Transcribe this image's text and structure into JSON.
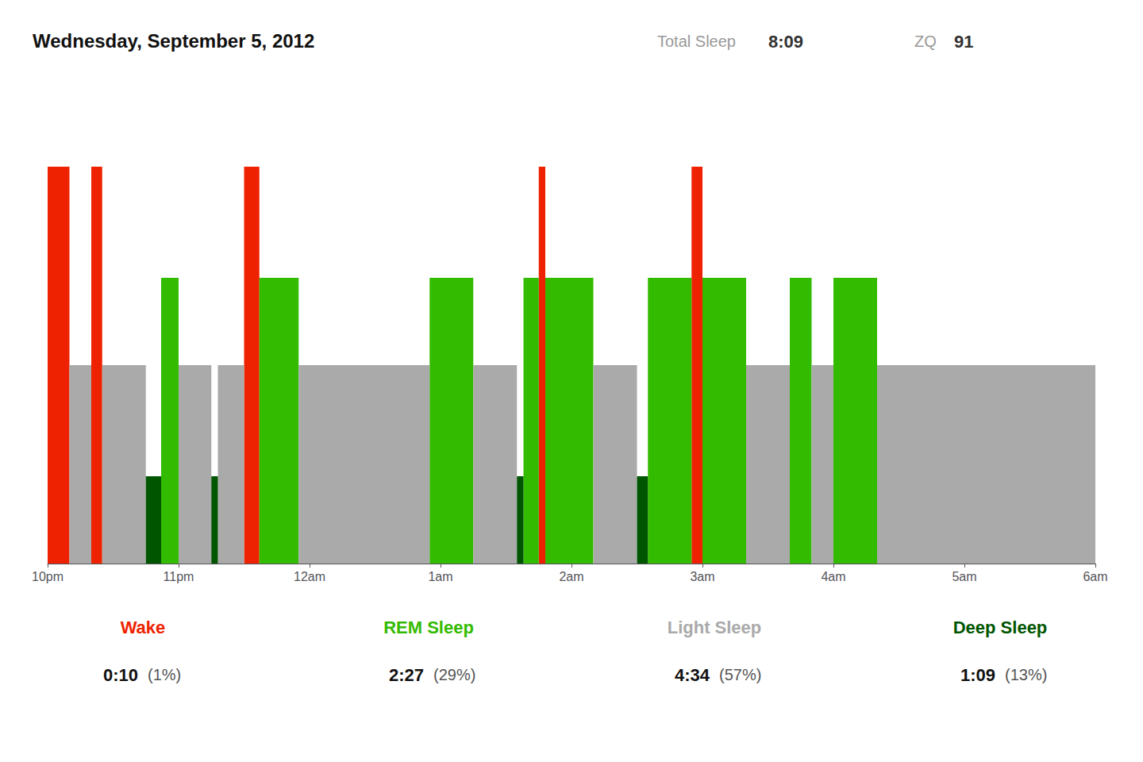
{
  "chart_data": {
    "type": "bar",
    "title": "Wednesday, September 5, 2012",
    "stats": [
      {
        "label": "Total Sleep",
        "value": "8:09"
      },
      {
        "label": "ZQ",
        "value": 91
      }
    ],
    "xlim": [
      0,
      480
    ],
    "xticks": [
      {
        "value": 0,
        "label": "10pm"
      },
      {
        "value": 60,
        "label": "11pm"
      },
      {
        "value": 120,
        "label": "12am"
      },
      {
        "value": 180,
        "label": "1am"
      },
      {
        "value": 240,
        "label": "2am"
      },
      {
        "value": 300,
        "label": "3am"
      },
      {
        "value": 360,
        "label": "4am"
      },
      {
        "value": 420,
        "label": "5am"
      },
      {
        "value": 480,
        "label": "6am"
      }
    ],
    "ylim": [
      0,
      120
    ],
    "tick_labels": "x",
    "grid": false,
    "series": [
      {
        "name": "Wake",
        "color": "#ee2200",
        "value": 100,
        "time": "0:10",
        "share": 1,
        "share_label": "(1%)"
      },
      {
        "name": "REM Sleep",
        "color": "#33bb00",
        "value": 72,
        "time": "2:27",
        "share": 29,
        "share_label": "(29%)"
      },
      {
        "name": "Light Sleep",
        "color": "#aaaaaa",
        "value": 50,
        "time": "4:34",
        "share": 57,
        "share_label": "(57%)"
      },
      {
        "name": "Deep Sleep",
        "color": "#005500",
        "value": 22,
        "time": "1:09",
        "share": 13,
        "share_label": "(13%)"
      }
    ],
    "segments": [
      {
        "start": 0,
        "end": 10,
        "stage": "Wake"
      },
      {
        "start": 10,
        "end": 20,
        "stage": "Light Sleep"
      },
      {
        "start": 20,
        "end": 25,
        "stage": "Wake"
      },
      {
        "start": 25,
        "end": 45,
        "stage": "Light Sleep"
      },
      {
        "start": 45,
        "end": 52,
        "stage": "Deep Sleep"
      },
      {
        "start": 52,
        "end": 60,
        "stage": "REM Sleep"
      },
      {
        "start": 60,
        "end": 75,
        "stage": "Light Sleep"
      },
      {
        "start": 75,
        "end": 78,
        "stage": "Deep Sleep"
      },
      {
        "start": 78,
        "end": 90,
        "stage": "Light Sleep"
      },
      {
        "start": 90,
        "end": 97,
        "stage": "Wake"
      },
      {
        "start": 97,
        "end": 115,
        "stage": "REM Sleep"
      },
      {
        "start": 115,
        "end": 175,
        "stage": "Light Sleep"
      },
      {
        "start": 175,
        "end": 195,
        "stage": "REM Sleep"
      },
      {
        "start": 195,
        "end": 215,
        "stage": "Light Sleep"
      },
      {
        "start": 215,
        "end": 218,
        "stage": "Deep Sleep"
      },
      {
        "start": 218,
        "end": 225,
        "stage": "REM Sleep"
      },
      {
        "start": 225,
        "end": 228,
        "stage": "Wake"
      },
      {
        "start": 228,
        "end": 250,
        "stage": "REM Sleep"
      },
      {
        "start": 250,
        "end": 270,
        "stage": "Light Sleep"
      },
      {
        "start": 270,
        "end": 275,
        "stage": "Deep Sleep"
      },
      {
        "start": 275,
        "end": 295,
        "stage": "REM Sleep"
      },
      {
        "start": 295,
        "end": 300,
        "stage": "Wake"
      },
      {
        "start": 300,
        "end": 320,
        "stage": "REM Sleep"
      },
      {
        "start": 320,
        "end": 340,
        "stage": "Light Sleep"
      },
      {
        "start": 340,
        "end": 350,
        "stage": "REM Sleep"
      },
      {
        "start": 350,
        "end": 360,
        "stage": "Light Sleep"
      },
      {
        "start": 360,
        "end": 380,
        "stage": "REM Sleep"
      },
      {
        "start": 380,
        "end": 480,
        "stage": "Light Sleep"
      }
    ]
  }
}
